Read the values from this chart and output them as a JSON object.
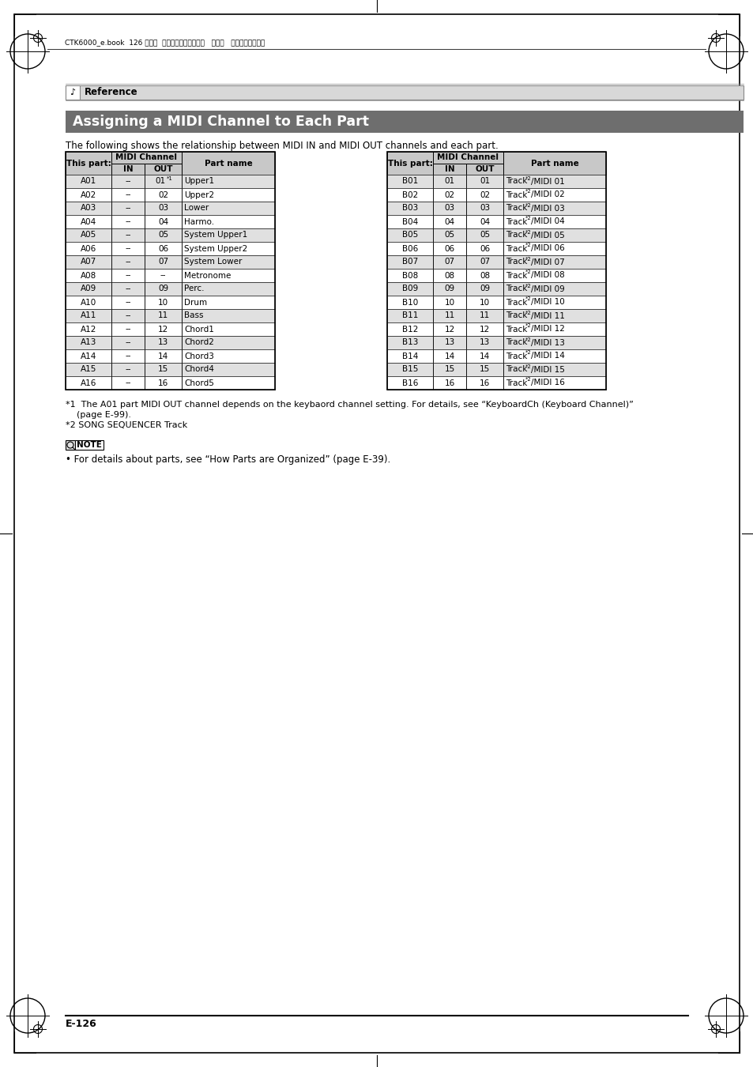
{
  "page_title": "Assigning a MIDI Channel to Each Part",
  "reference_label": "Reference",
  "subtitle": "The following shows the relationship between MIDI IN and MIDI OUT channels and each part.",
  "left_table_rows": [
    [
      "A01",
      "--",
      "01*1",
      "Upper1"
    ],
    [
      "A02",
      "--",
      "02",
      "Upper2"
    ],
    [
      "A03",
      "--",
      "03",
      "Lower"
    ],
    [
      "A04",
      "--",
      "04",
      "Harmo."
    ],
    [
      "A05",
      "--",
      "05",
      "System Upper1"
    ],
    [
      "A06",
      "--",
      "06",
      "System Upper2"
    ],
    [
      "A07",
      "--",
      "07",
      "System Lower"
    ],
    [
      "A08",
      "--",
      "--",
      "Metronome"
    ],
    [
      "A09",
      "--",
      "09",
      "Perc."
    ],
    [
      "A10",
      "--",
      "10",
      "Drum"
    ],
    [
      "A11",
      "--",
      "11",
      "Bass"
    ],
    [
      "A12",
      "--",
      "12",
      "Chord1"
    ],
    [
      "A13",
      "--",
      "13",
      "Chord2"
    ],
    [
      "A14",
      "--",
      "14",
      "Chord3"
    ],
    [
      "A15",
      "--",
      "15",
      "Chord4"
    ],
    [
      "A16",
      "--",
      "16",
      "Chord5"
    ]
  ],
  "right_table_rows": [
    [
      "B01",
      "01",
      "01",
      "Track*2/MIDI 01"
    ],
    [
      "B02",
      "02",
      "02",
      "Track*2/MIDI 02"
    ],
    [
      "B03",
      "03",
      "03",
      "Track*2/MIDI 03"
    ],
    [
      "B04",
      "04",
      "04",
      "Track*2/MIDI 04"
    ],
    [
      "B05",
      "05",
      "05",
      "Track*2/MIDI 05"
    ],
    [
      "B06",
      "06",
      "06",
      "Track*2/MIDI 06"
    ],
    [
      "B07",
      "07",
      "07",
      "Track*2/MIDI 07"
    ],
    [
      "B08",
      "08",
      "08",
      "Track*2/MIDI 08"
    ],
    [
      "B09",
      "09",
      "09",
      "Track*2/MIDI 09"
    ],
    [
      "B10",
      "10",
      "10",
      "Track*2/MIDI 10"
    ],
    [
      "B11",
      "11",
      "11",
      "Track*2/MIDI 11"
    ],
    [
      "B12",
      "12",
      "12",
      "Track*2/MIDI 12"
    ],
    [
      "B13",
      "13",
      "13",
      "Track*2/MIDI 13"
    ],
    [
      "B14",
      "14",
      "14",
      "Track*2/MIDI 14"
    ],
    [
      "B15",
      "15",
      "15",
      "Track*2/MIDI 15"
    ],
    [
      "B16",
      "16",
      "16",
      "Track*2/MIDI 16"
    ]
  ],
  "footnote1": "*1  The A01 part MIDI OUT channel depends on the keybaord channel setting. For details, see “KeyboardCh (Keyboard Channel)”",
  "footnote1b": "    (page E-99).",
  "footnote2": "*2 SONG SEQUENCER Track",
  "note_text": "• For details about parts, see “How Parts are Organized” (page E-39).",
  "page_number": "E-126",
  "header_file": "CTK6000_e.book  126 ページ  ２０１０年７月１２日   月曜日   午後１２時５０分",
  "title_bg": "#6e6e6e",
  "header_bg": "#c8c8c8",
  "row_even_bg": "#e0e0e0",
  "row_odd_bg": "#ffffff"
}
